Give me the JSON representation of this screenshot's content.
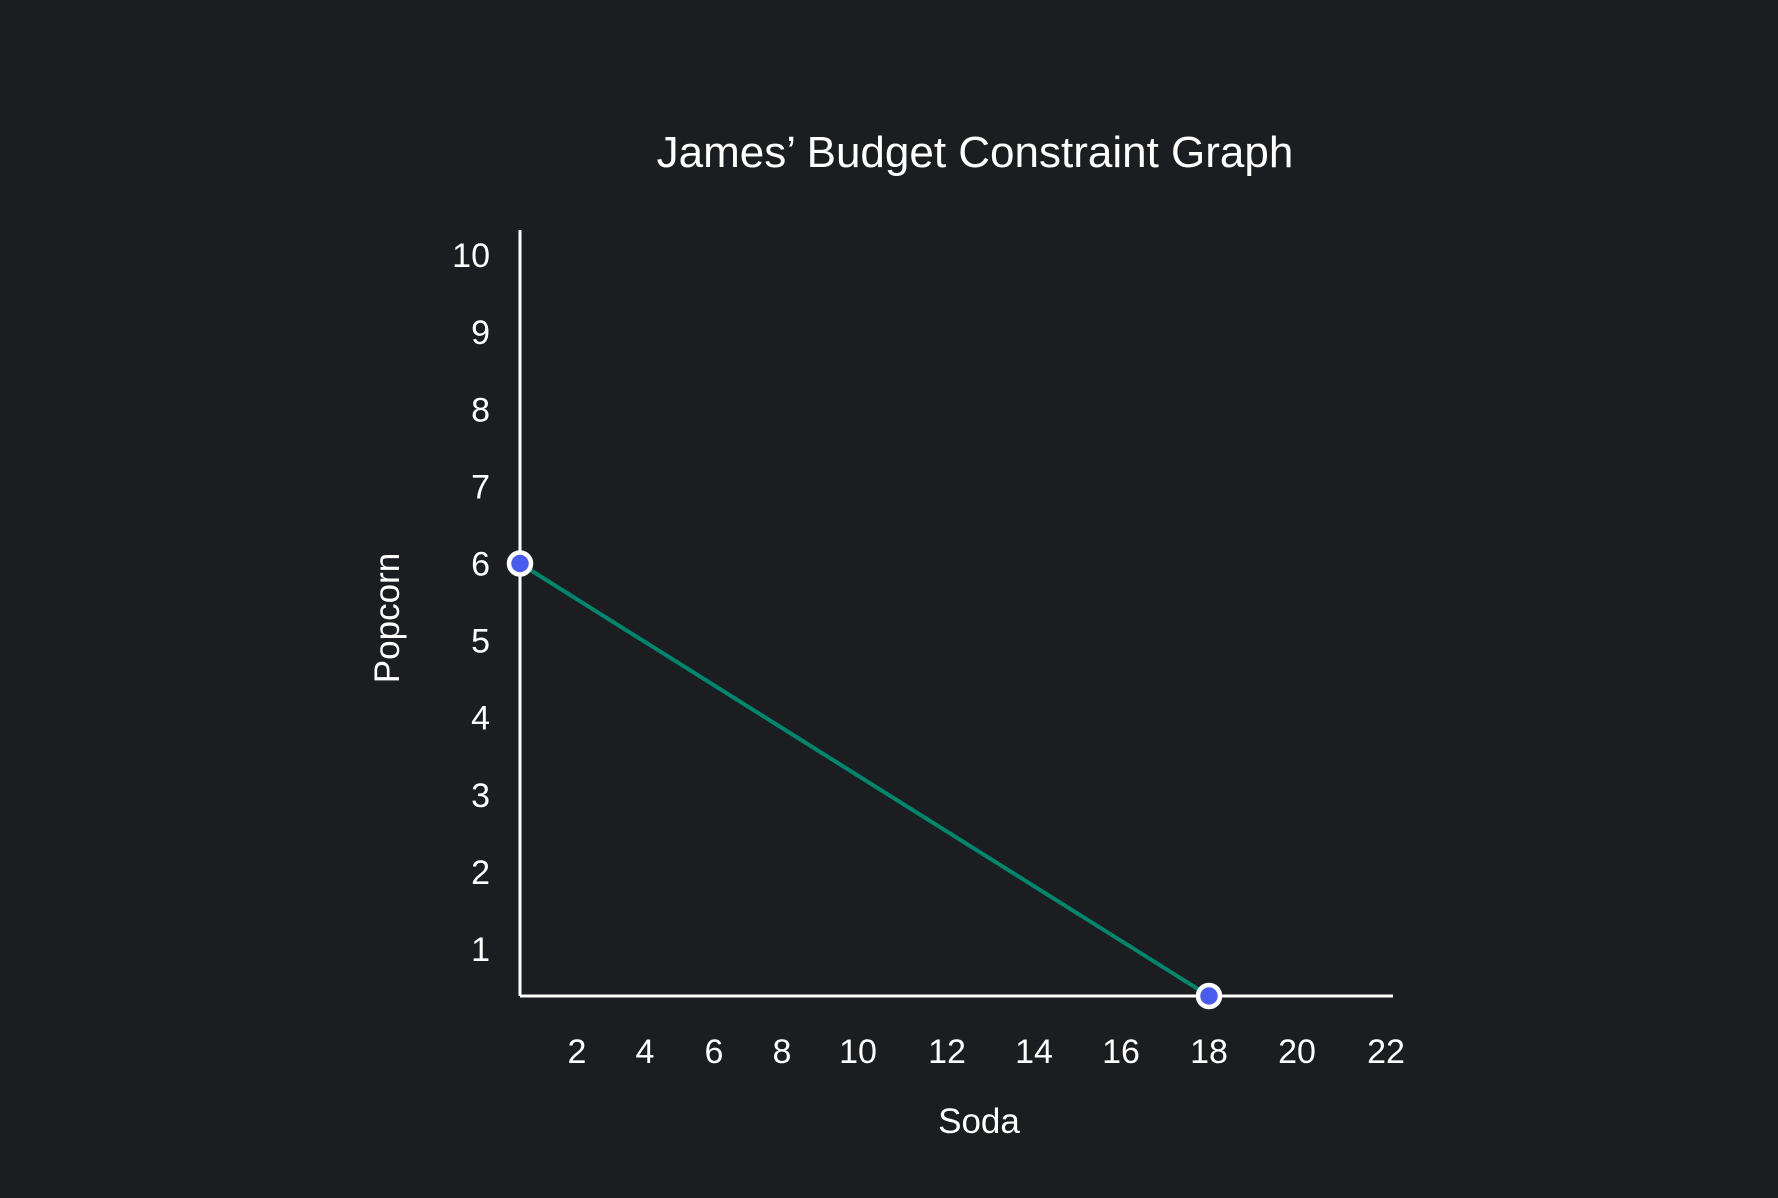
{
  "chart_data": {
    "type": "line",
    "title": "James’ Budget Constraint Graph",
    "xlabel": "Soda",
    "ylabel": "Popcorn",
    "x_ticks": [
      2,
      4,
      6,
      8,
      10,
      12,
      14,
      16,
      18,
      20,
      22
    ],
    "y_ticks": [
      1,
      2,
      3,
      4,
      5,
      6,
      7,
      8,
      9,
      10
    ],
    "xlim": [
      0,
      22
    ],
    "ylim": [
      0,
      10
    ],
    "grid": false,
    "series": [
      {
        "points": [
          {
            "x": 0,
            "y": 6
          },
          {
            "x": 18,
            "y": 0
          }
        ]
      }
    ],
    "colors": {
      "background": "#1c1d21",
      "axis": "#ffffff",
      "line": "#00876b",
      "point_fill": "#4a5cf0",
      "point_stroke": "#ffffff"
    }
  }
}
